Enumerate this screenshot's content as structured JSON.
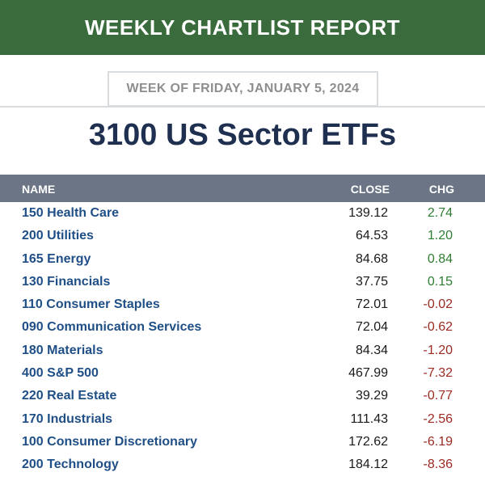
{
  "banner": {
    "title": "WEEKLY CHARTLIST REPORT"
  },
  "date_label": "WEEK OF FRIDAY, JANUARY 5, 2024",
  "report_title": "3100 US Sector ETFs",
  "table": {
    "headers": {
      "name": "NAME",
      "close": "CLOSE",
      "chg": "CHG"
    },
    "rows": [
      {
        "name": "150 Health Care",
        "close": "139.12",
        "chg": "2.74",
        "direction": "up"
      },
      {
        "name": "200 Utilities",
        "close": "64.53",
        "chg": "1.20",
        "direction": "up"
      },
      {
        "name": "165 Energy",
        "close": "84.68",
        "chg": "0.84",
        "direction": "up"
      },
      {
        "name": "130 Financials",
        "close": "37.75",
        "chg": "0.15",
        "direction": "up"
      },
      {
        "name": "110 Consumer Staples",
        "close": "72.01",
        "chg": "-0.02",
        "direction": "down"
      },
      {
        "name": "090 Communication Services",
        "close": "72.04",
        "chg": "-0.62",
        "direction": "down"
      },
      {
        "name": "180 Materials",
        "close": "84.34",
        "chg": "-1.20",
        "direction": "down"
      },
      {
        "name": "400 S&P 500",
        "close": "467.99",
        "chg": "-7.32",
        "direction": "down"
      },
      {
        "name": "220 Real Estate",
        "close": "39.29",
        "chg": "-0.77",
        "direction": "down"
      },
      {
        "name": "170 Industrials",
        "close": "111.43",
        "chg": "-2.56",
        "direction": "down"
      },
      {
        "name": "100 Consumer Discretionary",
        "close": "172.62",
        "chg": "-6.19",
        "direction": "down"
      },
      {
        "name": "200 Technology",
        "close": "184.12",
        "chg": "-8.36",
        "direction": "down"
      }
    ]
  },
  "colors": {
    "banner_green": "#3a6b3c",
    "header_gray": "#6b7585",
    "title_navy": "#1e2f4f",
    "name_blue": "#1f4f86",
    "positive": "#2f7d32",
    "negative": "#9b2a22"
  }
}
